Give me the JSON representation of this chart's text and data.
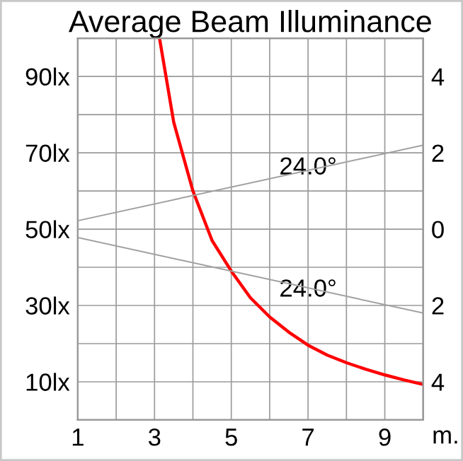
{
  "chart_data": {
    "type": "line",
    "title": "Average Beam Illuminance",
    "xlabel": "m.",
    "series": [
      {
        "color": "#ff0000",
        "x": [
          3.13,
          3.5,
          4,
          4.5,
          5,
          5.5,
          6,
          6.5,
          7,
          7.5,
          8,
          8.5,
          9,
          9.5,
          10
        ],
        "values": [
          100,
          78,
          60,
          47,
          39,
          32,
          27,
          23,
          19.6,
          17,
          15,
          13.3,
          11.8,
          10.5,
          9.3
        ]
      },
      {
        "color": "#a0a0a0",
        "axis": "y2",
        "x": [
          1,
          10
        ],
        "values": [
          0.22,
          2.2
        ]
      },
      {
        "color": "#a0a0a0",
        "axis": "y2",
        "x": [
          1,
          10
        ],
        "values": [
          -0.22,
          -2.2
        ]
      }
    ],
    "xlim": [
      1,
      10
    ],
    "xticks": [
      1,
      {
        "value": 2,
        "label": null
      },
      3,
      {
        "value": 4,
        "label": null
      },
      5,
      {
        "value": 6,
        "label": null
      },
      7,
      {
        "value": 8,
        "label": null
      },
      9,
      {
        "value": 10,
        "label": null
      }
    ],
    "ylim": [
      0,
      100
    ],
    "yticks": [
      {
        "value": 0,
        "label": null
      },
      {
        "value": 10,
        "label": "10lx"
      },
      {
        "value": 20,
        "label": null
      },
      {
        "value": 30,
        "label": "30lx"
      },
      {
        "value": 40,
        "label": null
      },
      {
        "value": 50,
        "label": "50lx"
      },
      {
        "value": 60,
        "label": null
      },
      {
        "value": 70,
        "label": "70lx"
      },
      {
        "value": 80,
        "label": null
      },
      {
        "value": 90,
        "label": "90lx"
      },
      {
        "value": 100,
        "label": null
      }
    ],
    "y2lim": [
      -5,
      5
    ],
    "y2ticks": [
      {
        "value": 4,
        "label": "4"
      },
      {
        "value": 2,
        "label": "2"
      },
      {
        "value": 0,
        "label": "0"
      },
      {
        "value": -2,
        "label": "2"
      },
      {
        "value": -4,
        "label": "4"
      }
    ],
    "annotations": [
      {
        "text": "24.0°",
        "x": 7,
        "y": 66
      },
      {
        "text": "24.0°",
        "x": 7,
        "y": 34
      }
    ],
    "grid": true,
    "legend": false,
    "marker": "none",
    "line_style": "solid"
  }
}
